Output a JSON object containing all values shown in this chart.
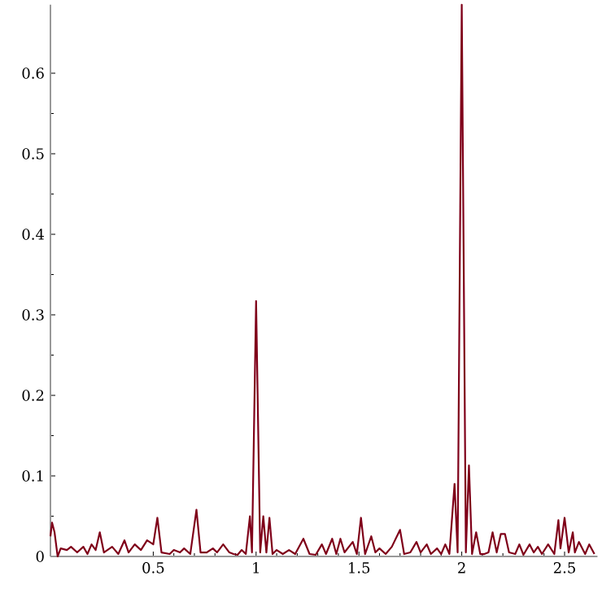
{
  "chart_data": {
    "type": "line",
    "x": [
      0,
      0.008,
      0.02,
      0.035,
      0.05,
      0.08,
      0.1,
      0.13,
      0.16,
      0.18,
      0.2,
      0.22,
      0.24,
      0.26,
      0.3,
      0.33,
      0.36,
      0.38,
      0.41,
      0.44,
      0.47,
      0.5,
      0.52,
      0.54,
      0.58,
      0.6,
      0.63,
      0.65,
      0.68,
      0.71,
      0.73,
      0.76,
      0.79,
      0.81,
      0.84,
      0.87,
      0.89,
      0.91,
      0.93,
      0.95,
      0.97,
      0.98,
      1.0,
      1.02,
      1.035,
      1.05,
      1.065,
      1.08,
      1.1,
      1.13,
      1.16,
      1.19,
      1.23,
      1.26,
      1.29,
      1.32,
      1.34,
      1.37,
      1.39,
      1.41,
      1.43,
      1.47,
      1.49,
      1.51,
      1.53,
      1.56,
      1.58,
      1.6,
      1.63,
      1.66,
      1.7,
      1.72,
      1.75,
      1.78,
      1.8,
      1.83,
      1.85,
      1.88,
      1.9,
      1.92,
      1.94,
      1.965,
      1.98,
      2.0,
      2.02,
      2.035,
      2.05,
      2.07,
      2.09,
      2.11,
      2.13,
      2.15,
      2.17,
      2.19,
      2.21,
      2.23,
      2.26,
      2.28,
      2.3,
      2.33,
      2.35,
      2.37,
      2.39,
      2.42,
      2.45,
      2.47,
      2.48,
      2.5,
      2.52,
      2.54,
      2.55,
      2.57,
      2.6,
      2.62,
      2.645
    ],
    "series": [
      {
        "color": "#7f0019",
        "values": [
          0.025,
          0.042,
          0.03,
          0.0,
          0.01,
          0.008,
          0.012,
          0.005,
          0.012,
          0.003,
          0.015,
          0.008,
          0.03,
          0.005,
          0.012,
          0.003,
          0.02,
          0.005,
          0.015,
          0.008,
          0.02,
          0.015,
          0.048,
          0.005,
          0.003,
          0.008,
          0.005,
          0.01,
          0.003,
          0.058,
          0.005,
          0.005,
          0.01,
          0.005,
          0.015,
          0.005,
          0.003,
          0.002,
          0.008,
          0.003,
          0.05,
          0.005,
          0.317,
          0.005,
          0.05,
          0.005,
          0.048,
          0.003,
          0.008,
          0.003,
          0.008,
          0.003,
          0.022,
          0.003,
          0.002,
          0.015,
          0.003,
          0.022,
          0.003,
          0.022,
          0.005,
          0.018,
          0.003,
          0.048,
          0.003,
          0.025,
          0.005,
          0.01,
          0.003,
          0.012,
          0.033,
          0.003,
          0.005,
          0.018,
          0.005,
          0.015,
          0.003,
          0.01,
          0.003,
          0.015,
          0.003,
          0.09,
          0.005,
          0.685,
          0.005,
          0.113,
          0.003,
          0.03,
          0.003,
          0.003,
          0.005,
          0.03,
          0.005,
          0.028,
          0.028,
          0.005,
          0.003,
          0.015,
          0.002,
          0.015,
          0.005,
          0.012,
          0.003,
          0.015,
          0.003,
          0.045,
          0.01,
          0.048,
          0.005,
          0.03,
          0.005,
          0.018,
          0.003,
          0.015,
          0.003
        ]
      }
    ],
    "xlim": [
      0,
      2.66
    ],
    "ylim": [
      0,
      0.685
    ],
    "xticks": [
      0.5,
      1,
      1.5,
      2,
      2.5
    ],
    "yticks": [
      0,
      0.1,
      0.2,
      0.3,
      0.4,
      0.5,
      0.6
    ],
    "line_style": "solid"
  }
}
